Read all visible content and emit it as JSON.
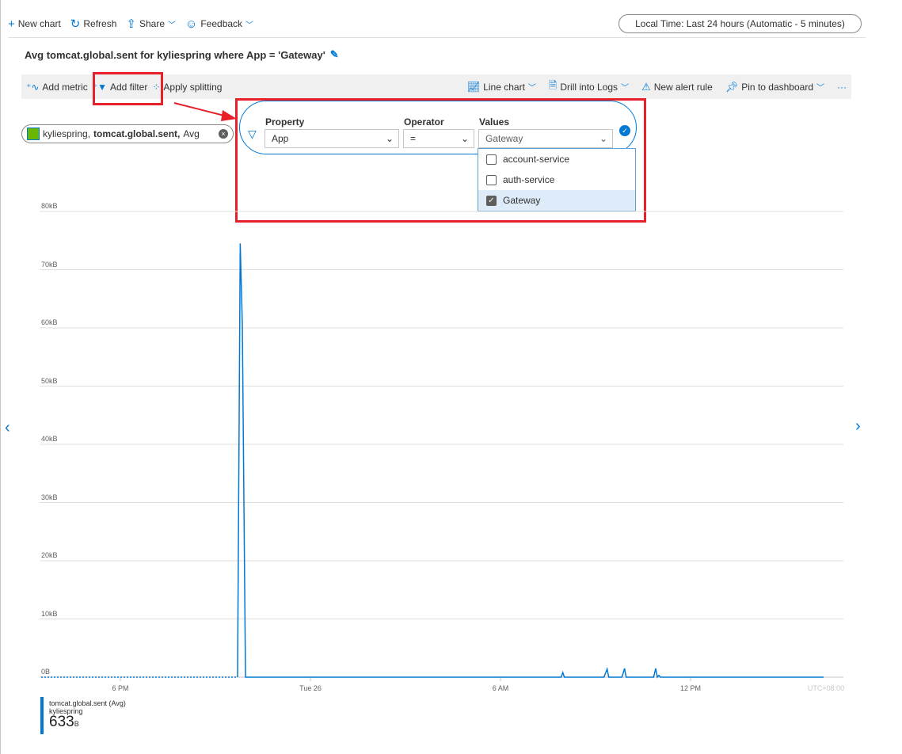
{
  "topbar": {
    "new_chart": "New chart",
    "refresh": "Refresh",
    "share": "Share",
    "feedback": "Feedback",
    "time_range": "Local Time: Last 24 hours (Automatic - 5 minutes)"
  },
  "title": "Avg tomcat.global.sent for kyliespring where App = 'Gateway'",
  "toolbar": {
    "add_metric": "Add metric",
    "add_filter": "Add filter",
    "apply_splitting": "Apply splitting",
    "line_chart": "Line chart",
    "drill_logs": "Drill into Logs",
    "new_alert": "New alert rule",
    "pin": "Pin to dashboard",
    "more": "···"
  },
  "metric_pill": {
    "resource": "kyliespring,",
    "metric": "tomcat.global.sent,",
    "agg": "Avg"
  },
  "filter": {
    "property_label": "Property",
    "property_value": "App",
    "operator_label": "Operator",
    "operator_value": "=",
    "values_label": "Values",
    "values_value": "Gateway",
    "options": [
      {
        "label": "account-service",
        "checked": false
      },
      {
        "label": "auth-service",
        "checked": false
      },
      {
        "label": "Gateway",
        "checked": true
      }
    ]
  },
  "accent": "#0078d4",
  "highlight": "#e8202a",
  "chart_data": {
    "type": "line",
    "yticks": [
      "0B",
      "10kB",
      "20kB",
      "30kB",
      "40kB",
      "50kB",
      "60kB",
      "70kB",
      "80kB"
    ],
    "ylim": [
      0,
      80
    ],
    "yunit": "kB",
    "xticks": [
      {
        "label": "6 PM",
        "t": "Mon 18:00"
      },
      {
        "label": "Tue 26",
        "t": "Tue 00:00"
      },
      {
        "label": "6 AM",
        "t": "Tue 06:00"
      },
      {
        "label": "12 PM",
        "t": "Tue 12:00"
      }
    ],
    "timezone": "UTC+08:00",
    "grid": true,
    "dashed_until": "Mon 21:42",
    "series": [
      {
        "name": "tomcat.global.sent (Avg)",
        "sub": "kyliespring",
        "color": "#0078d4",
        "points": [
          [
            "Mon 15:30",
            0
          ],
          [
            "Mon 21:42",
            0
          ],
          [
            "Mon 21:47",
            74.5
          ],
          [
            "Mon 21:51",
            60.5
          ],
          [
            "Mon 21:57",
            0
          ],
          [
            "Tue 07:55",
            0
          ],
          [
            "Tue 07:58",
            0.8
          ],
          [
            "Tue 08:01",
            0
          ],
          [
            "Tue 09:16",
            0
          ],
          [
            "Tue 09:22",
            1.4
          ],
          [
            "Tue 09:25",
            0
          ],
          [
            "Tue 09:50",
            0
          ],
          [
            "Tue 09:55",
            1.5
          ],
          [
            "Tue 09:58",
            0
          ],
          [
            "Tue 10:50",
            0
          ],
          [
            "Tue 10:54",
            1.5
          ],
          [
            "Tue 10:57",
            0
          ],
          [
            "Tue 11:00",
            0.3
          ],
          [
            "Tue 11:03",
            0
          ],
          [
            "Tue 16:12",
            0
          ]
        ]
      }
    ],
    "legend": {
      "value": "633",
      "unit": "B"
    }
  }
}
